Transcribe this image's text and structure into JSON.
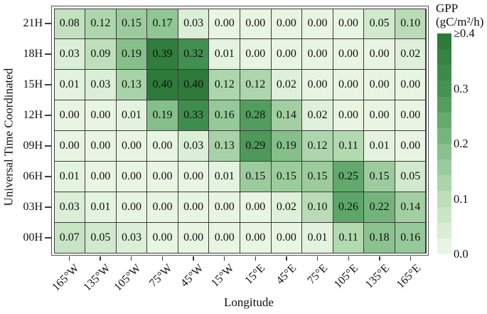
{
  "chart_data": {
    "type": "heatmap",
    "title": "",
    "xlabel": "Longitude",
    "ylabel": "Universal Time Coordinated",
    "x_categories": [
      "165°W",
      "135°W",
      "105°W",
      "75°W",
      "45°W",
      "15°W",
      "15°E",
      "45°E",
      "75°E",
      "105°E",
      "135°E",
      "165°E"
    ],
    "y_categories": [
      "21H",
      "18H",
      "15H",
      "12H",
      "09H",
      "06H",
      "03H",
      "00H"
    ],
    "values": [
      [
        0.08,
        0.12,
        0.15,
        0.17,
        0.03,
        0.0,
        0.0,
        0.0,
        0.0,
        0.0,
        0.05,
        0.1
      ],
      [
        0.03,
        0.09,
        0.19,
        0.39,
        0.32,
        0.01,
        0.0,
        0.0,
        0.0,
        0.0,
        0.0,
        0.02
      ],
      [
        0.01,
        0.03,
        0.13,
        0.4,
        0.4,
        0.12,
        0.12,
        0.02,
        0.0,
        0.0,
        0.0,
        0.0
      ],
      [
        0.0,
        0.0,
        0.01,
        0.19,
        0.33,
        0.16,
        0.28,
        0.14,
        0.02,
        0.0,
        0.0,
        0.0
      ],
      [
        0.0,
        0.0,
        0.0,
        0.0,
        0.03,
        0.13,
        0.29,
        0.19,
        0.12,
        0.11,
        0.01,
        0.0
      ],
      [
        0.01,
        0.0,
        0.0,
        0.0,
        0.0,
        0.01,
        0.15,
        0.15,
        0.15,
        0.25,
        0.15,
        0.05
      ],
      [
        0.03,
        0.01,
        0.0,
        0.0,
        0.0,
        0.0,
        0.0,
        0.02,
        0.1,
        0.26,
        0.22,
        0.14
      ],
      [
        0.07,
        0.05,
        0.03,
        0.0,
        0.0,
        0.0,
        0.0,
        0.0,
        0.01,
        0.11,
        0.18,
        0.16
      ]
    ],
    "value_decimals": 2,
    "color_scale": {
      "type": "sequential-greens",
      "domain": [
        0.0,
        0.4
      ],
      "anchors": [
        {
          "value": 0.0,
          "color": "#e9f5e3"
        },
        {
          "value": 0.1,
          "color": "#b9dcb6"
        },
        {
          "value": 0.2,
          "color": "#7fbc85"
        },
        {
          "value": 0.3,
          "color": "#479554"
        },
        {
          "value": 0.4,
          "color": "#2d7a3a"
        }
      ],
      "legend_bands": 14
    },
    "legend": {
      "title": "GPP",
      "units": "(gC/m²/h)",
      "tick_labels": [
        "≥0.4",
        "0.3",
        "0.2",
        "0.1",
        "0.0"
      ],
      "position": "right"
    },
    "grid_on": true,
    "grid_line_color": "#3c3c3c",
    "frame_color": "#4f4f4f",
    "text_color": "#101010",
    "background": "#ffffff"
  }
}
